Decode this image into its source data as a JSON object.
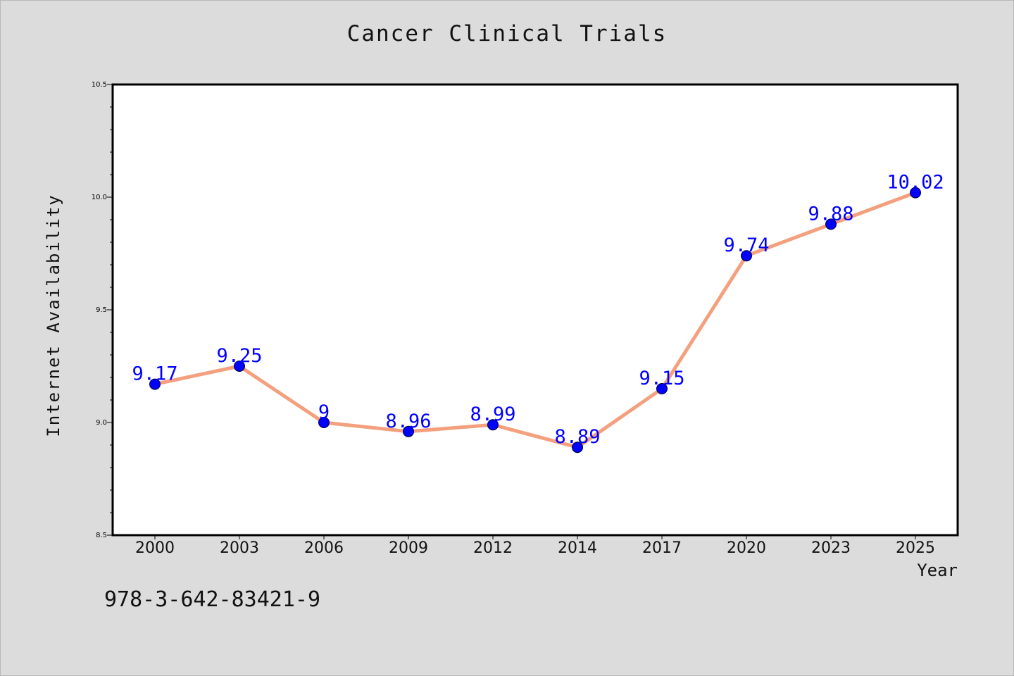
{
  "chart_data": {
    "type": "line",
    "title": "Cancer Clinical Trials",
    "xlabel": "Year",
    "ylabel": "Internet Availability",
    "categories": [
      "2000",
      "2003",
      "2006",
      "2009",
      "2012",
      "2014",
      "2017",
      "2020",
      "2023",
      "2025"
    ],
    "series": [
      {
        "values": [
          9.17,
          9.25,
          9,
          8.96,
          8.99,
          8.89,
          9.15,
          9.74,
          9.88,
          10.02
        ],
        "data_labels": [
          "9.17",
          "9.25",
          "9",
          "8.96",
          "8.99",
          "8.89",
          "9.15",
          "9.74",
          "9.88",
          "10.02"
        ]
      }
    ],
    "ylim": [
      8.5,
      10.5
    ],
    "y_ticks": [
      "8.5",
      "9.0",
      "9.5",
      "10.0",
      "10.5"
    ],
    "grid": false,
    "colors": {
      "line": "#f4a07e",
      "marker": "#0000ff",
      "label": "#0000ff",
      "axes": "#000000"
    }
  },
  "footer": {
    "isbn": "978-3-642-83421-9"
  }
}
